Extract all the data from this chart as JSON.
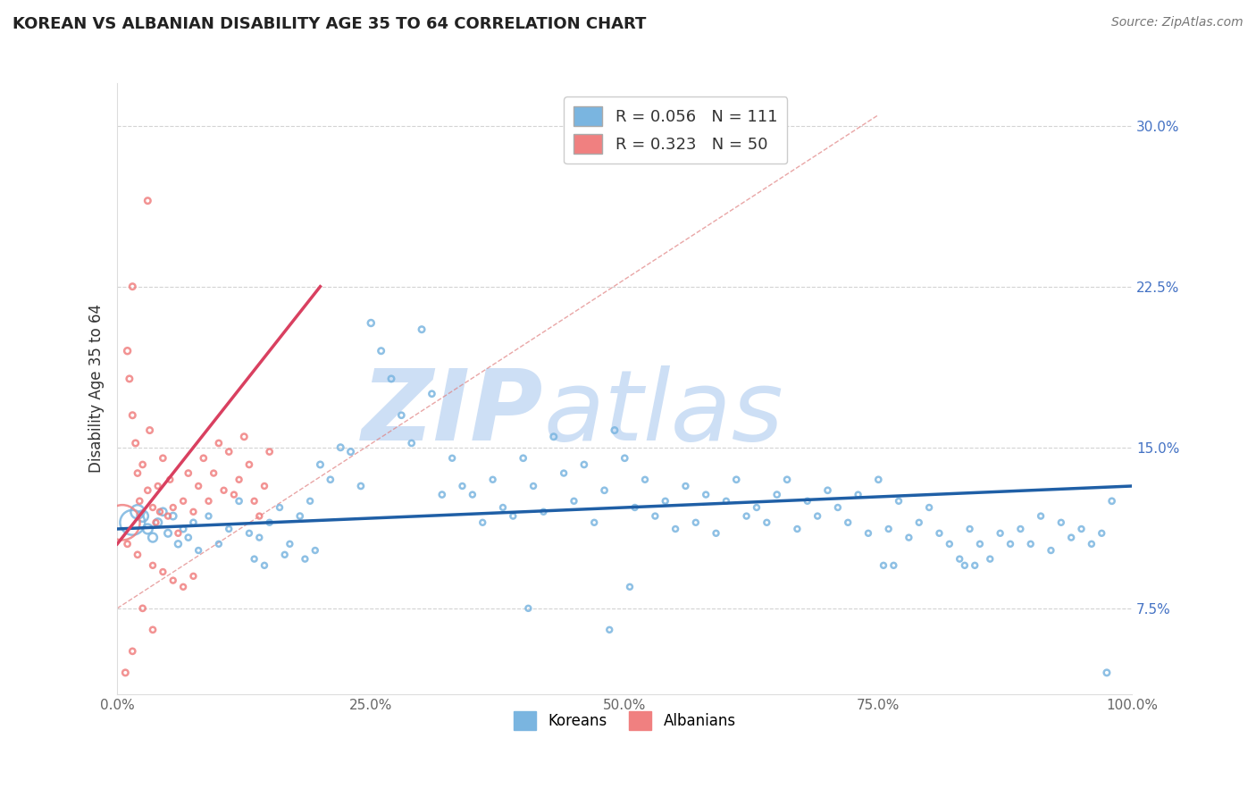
{
  "title": "KOREAN VS ALBANIAN DISABILITY AGE 35 TO 64 CORRELATION CHART",
  "source": "Source: ZipAtlas.com",
  "ylabel": "Disability Age 35 to 64",
  "xlim": [
    0,
    100
  ],
  "ylim": [
    3.5,
    32.0
  ],
  "xticks": [
    0,
    25,
    50,
    75,
    100
  ],
  "xtick_labels": [
    "0.0%",
    "25.0%",
    "50.0%",
    "75.0%",
    "100.0%"
  ],
  "yticks": [
    7.5,
    15.0,
    22.5,
    30.0
  ],
  "ytick_labels": [
    "7.5%",
    "15.0%",
    "22.5%",
    "30.0%"
  ],
  "korean_R": 0.056,
  "korean_N": 111,
  "albanian_R": 0.323,
  "albanian_N": 50,
  "korean_color": "#7ab5e0",
  "albanian_color": "#f08080",
  "korean_line_color": "#1f5fa6",
  "albanian_line_color": "#d94060",
  "background_color": "#ffffff",
  "grid_color": "#c8c8c8",
  "watermark_color": "#cddff5",
  "legend_korean_label": "Koreans",
  "legend_albanian_label": "Albanians",
  "korean_line_x0": 0,
  "korean_line_y0": 11.2,
  "korean_line_x1": 100,
  "korean_line_y1": 13.2,
  "albanian_line_x0": 0,
  "albanian_line_y0": 10.5,
  "albanian_line_x1": 20,
  "albanian_line_y1": 22.5,
  "diag_x0": 0,
  "diag_y0": 7.5,
  "diag_x1": 75,
  "diag_y1": 30.5,
  "korean_points": [
    [
      1.5,
      11.5,
      400
    ],
    [
      2.0,
      12.0,
      120
    ],
    [
      2.5,
      11.8,
      80
    ],
    [
      3.0,
      11.2,
      60
    ],
    [
      3.5,
      10.8,
      50
    ],
    [
      4.0,
      11.5,
      40
    ],
    [
      4.5,
      12.0,
      35
    ],
    [
      5.0,
      11.0,
      30
    ],
    [
      5.5,
      11.8,
      28
    ],
    [
      6.0,
      10.5,
      25
    ],
    [
      6.5,
      11.2,
      22
    ],
    [
      7.0,
      10.8,
      20
    ],
    [
      7.5,
      11.5,
      20
    ],
    [
      8.0,
      10.2,
      18
    ],
    [
      9.0,
      11.8,
      18
    ],
    [
      10.0,
      10.5,
      18
    ],
    [
      11.0,
      11.2,
      18
    ],
    [
      12.0,
      12.5,
      20
    ],
    [
      13.0,
      11.0,
      18
    ],
    [
      14.0,
      10.8,
      18
    ],
    [
      15.0,
      11.5,
      18
    ],
    [
      16.0,
      12.2,
      18
    ],
    [
      17.0,
      10.5,
      18
    ],
    [
      18.0,
      11.8,
      20
    ],
    [
      19.0,
      12.5,
      18
    ],
    [
      20.0,
      14.2,
      22
    ],
    [
      21.0,
      13.5,
      20
    ],
    [
      22.0,
      15.0,
      22
    ],
    [
      23.0,
      14.8,
      22
    ],
    [
      24.0,
      13.2,
      20
    ],
    [
      25.0,
      20.8,
      25
    ],
    [
      26.0,
      19.5,
      22
    ],
    [
      27.0,
      18.2,
      22
    ],
    [
      28.0,
      16.5,
      20
    ],
    [
      29.0,
      15.2,
      20
    ],
    [
      30.0,
      20.5,
      22
    ],
    [
      31.0,
      17.5,
      20
    ],
    [
      32.0,
      12.8,
      20
    ],
    [
      33.0,
      14.5,
      18
    ],
    [
      34.0,
      13.2,
      18
    ],
    [
      35.0,
      12.8,
      18
    ],
    [
      36.0,
      11.5,
      18
    ],
    [
      37.0,
      13.5,
      18
    ],
    [
      38.0,
      12.2,
      18
    ],
    [
      39.0,
      11.8,
      18
    ],
    [
      40.0,
      14.5,
      20
    ],
    [
      41.0,
      13.2,
      18
    ],
    [
      42.0,
      12.0,
      18
    ],
    [
      43.0,
      15.5,
      22
    ],
    [
      44.0,
      13.8,
      18
    ],
    [
      45.0,
      12.5,
      18
    ],
    [
      46.0,
      14.2,
      20
    ],
    [
      47.0,
      11.5,
      18
    ],
    [
      48.0,
      13.0,
      20
    ],
    [
      49.0,
      15.8,
      22
    ],
    [
      50.0,
      14.5,
      20
    ],
    [
      51.0,
      12.2,
      18
    ],
    [
      52.0,
      13.5,
      18
    ],
    [
      53.0,
      11.8,
      18
    ],
    [
      54.0,
      12.5,
      18
    ],
    [
      55.0,
      11.2,
      18
    ],
    [
      56.0,
      13.2,
      18
    ],
    [
      57.0,
      11.5,
      18
    ],
    [
      58.0,
      12.8,
      18
    ],
    [
      59.0,
      11.0,
      18
    ],
    [
      60.0,
      12.5,
      18
    ],
    [
      61.0,
      13.5,
      20
    ],
    [
      62.0,
      11.8,
      18
    ],
    [
      63.0,
      12.2,
      18
    ],
    [
      64.0,
      11.5,
      18
    ],
    [
      65.0,
      12.8,
      20
    ],
    [
      66.0,
      13.5,
      20
    ],
    [
      67.0,
      11.2,
      18
    ],
    [
      68.0,
      12.5,
      18
    ],
    [
      69.0,
      11.8,
      18
    ],
    [
      70.0,
      13.0,
      20
    ],
    [
      71.0,
      12.2,
      18
    ],
    [
      72.0,
      11.5,
      18
    ],
    [
      73.0,
      12.8,
      18
    ],
    [
      74.0,
      11.0,
      18
    ],
    [
      75.0,
      13.5,
      20
    ],
    [
      76.0,
      11.2,
      18
    ],
    [
      77.0,
      12.5,
      18
    ],
    [
      78.0,
      10.8,
      18
    ],
    [
      79.0,
      11.5,
      18
    ],
    [
      80.0,
      12.2,
      18
    ],
    [
      81.0,
      11.0,
      18
    ],
    [
      82.0,
      10.5,
      18
    ],
    [
      83.0,
      9.8,
      18
    ],
    [
      84.0,
      11.2,
      18
    ],
    [
      85.0,
      10.5,
      18
    ],
    [
      86.0,
      9.8,
      18
    ],
    [
      87.0,
      11.0,
      18
    ],
    [
      88.0,
      10.5,
      18
    ],
    [
      89.0,
      11.2,
      18
    ],
    [
      90.0,
      10.5,
      18
    ],
    [
      91.0,
      11.8,
      18
    ],
    [
      92.0,
      10.2,
      18
    ],
    [
      93.0,
      11.5,
      18
    ],
    [
      94.0,
      10.8,
      18
    ],
    [
      95.0,
      11.2,
      18
    ],
    [
      96.0,
      10.5,
      18
    ],
    [
      97.0,
      11.0,
      18
    ],
    [
      98.0,
      12.5,
      20
    ],
    [
      50.5,
      8.5,
      18
    ],
    [
      40.5,
      7.5,
      18
    ],
    [
      48.5,
      6.5,
      18
    ],
    [
      75.5,
      9.5,
      18
    ],
    [
      76.5,
      9.5,
      18
    ],
    [
      83.5,
      9.5,
      18
    ],
    [
      84.5,
      9.5,
      18
    ],
    [
      97.5,
      4.5,
      22
    ],
    [
      13.5,
      9.8,
      18
    ],
    [
      14.5,
      9.5,
      18
    ],
    [
      16.5,
      10.0,
      18
    ],
    [
      18.5,
      9.8,
      18
    ],
    [
      19.5,
      10.2,
      18
    ]
  ],
  "albanian_points": [
    [
      0.5,
      11.5,
      800
    ],
    [
      1.0,
      19.5,
      25
    ],
    [
      1.2,
      18.2,
      22
    ],
    [
      1.5,
      16.5,
      22
    ],
    [
      1.8,
      15.2,
      22
    ],
    [
      2.0,
      13.8,
      20
    ],
    [
      2.2,
      12.5,
      20
    ],
    [
      2.5,
      14.2,
      20
    ],
    [
      3.0,
      13.0,
      20
    ],
    [
      3.2,
      15.8,
      22
    ],
    [
      3.5,
      12.2,
      18
    ],
    [
      3.8,
      11.5,
      18
    ],
    [
      4.0,
      13.2,
      18
    ],
    [
      4.2,
      12.0,
      18
    ],
    [
      4.5,
      14.5,
      20
    ],
    [
      5.0,
      11.8,
      18
    ],
    [
      5.2,
      13.5,
      18
    ],
    [
      5.5,
      12.2,
      18
    ],
    [
      6.0,
      11.0,
      18
    ],
    [
      6.5,
      12.5,
      18
    ],
    [
      7.0,
      13.8,
      20
    ],
    [
      7.5,
      12.0,
      18
    ],
    [
      8.0,
      13.2,
      18
    ],
    [
      8.5,
      14.5,
      20
    ],
    [
      9.0,
      12.5,
      18
    ],
    [
      9.5,
      13.8,
      18
    ],
    [
      10.0,
      15.2,
      20
    ],
    [
      10.5,
      13.0,
      18
    ],
    [
      11.0,
      14.8,
      20
    ],
    [
      11.5,
      12.8,
      18
    ],
    [
      12.0,
      13.5,
      18
    ],
    [
      12.5,
      15.5,
      22
    ],
    [
      13.0,
      14.2,
      20
    ],
    [
      13.5,
      12.5,
      18
    ],
    [
      14.0,
      11.8,
      18
    ],
    [
      14.5,
      13.2,
      18
    ],
    [
      15.0,
      14.8,
      20
    ],
    [
      3.0,
      26.5,
      22
    ],
    [
      1.5,
      22.5,
      22
    ],
    [
      1.0,
      10.5,
      20
    ],
    [
      2.0,
      10.0,
      20
    ],
    [
      3.5,
      9.5,
      18
    ],
    [
      4.5,
      9.2,
      18
    ],
    [
      5.5,
      8.8,
      18
    ],
    [
      6.5,
      8.5,
      18
    ],
    [
      7.5,
      9.0,
      18
    ],
    [
      2.5,
      7.5,
      20
    ],
    [
      3.5,
      6.5,
      20
    ],
    [
      1.5,
      5.5,
      20
    ],
    [
      0.8,
      4.5,
      22
    ]
  ]
}
